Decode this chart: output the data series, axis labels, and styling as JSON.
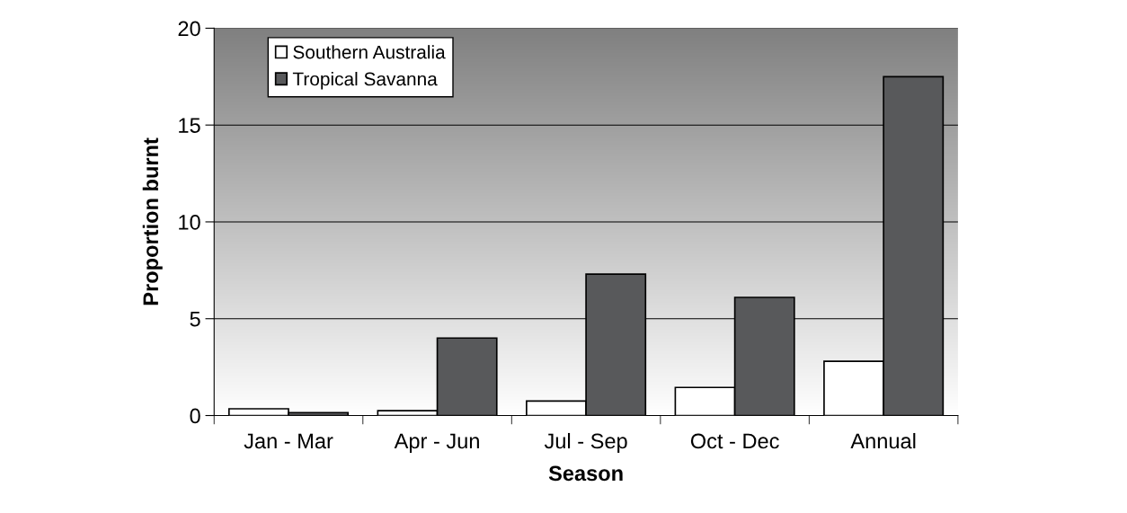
{
  "chart_data": {
    "type": "bar",
    "xlabel": "Season",
    "ylabel": "Proportion burnt",
    "categories": [
      "Jan - Mar",
      "Apr - Jun",
      "Jul - Sep",
      "Oct - Dec",
      "Annual"
    ],
    "series": [
      {
        "name": "Southern Australia",
        "color": "#ffffff",
        "values": [
          0.35,
          0.25,
          0.75,
          1.45,
          2.8
        ]
      },
      {
        "name": "Tropical Savanna",
        "color": "#58595b",
        "values": [
          0.15,
          4.0,
          7.3,
          6.1,
          17.5
        ]
      }
    ],
    "ylim": [
      0,
      20
    ],
    "yticks": [
      0,
      5,
      10,
      15,
      20
    ],
    "grid": "y",
    "legend": "top left"
  }
}
